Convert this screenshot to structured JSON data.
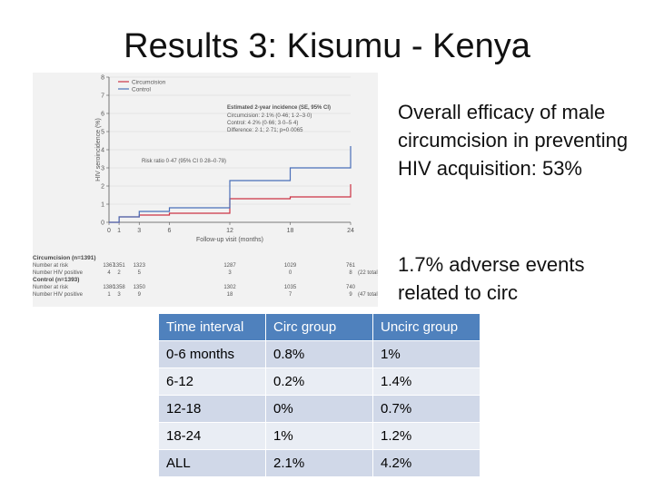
{
  "slide": {
    "title": "Results 3: Kisumu - Kenya",
    "efficacy_text": "Overall efficacy of male circumcision in preventing HIV acquisition: 53%",
    "adverse_text": "1.7% adverse events related to circ"
  },
  "chart_data": {
    "type": "line",
    "step": true,
    "xlabel": "Follow-up visit (months)",
    "ylabel": "HIV seroincidence (%)",
    "xlim": [
      0,
      24
    ],
    "ylim": [
      0,
      8
    ],
    "xticks": [
      "0",
      "1",
      "3",
      "6",
      "12",
      "18",
      "24"
    ],
    "yticks": [
      "0",
      "1",
      "2",
      "3",
      "4",
      "5",
      "6",
      "7",
      "8"
    ],
    "legend_position": "top-left",
    "series": [
      {
        "name": "Circumcision",
        "color": "#cc3344",
        "x": [
          0,
          1,
          1,
          3,
          3,
          6,
          6,
          12,
          12,
          18,
          18,
          24,
          24
        ],
        "y": [
          0,
          0,
          0.3,
          0.3,
          0.4,
          0.4,
          0.5,
          0.5,
          1.3,
          1.3,
          1.4,
          1.4,
          2.1
        ]
      },
      {
        "name": "Control",
        "color": "#4a6fb8",
        "x": [
          0,
          1,
          1,
          3,
          3,
          6,
          6,
          12,
          12,
          18,
          18,
          24,
          24
        ],
        "y": [
          0,
          0,
          0.3,
          0.3,
          0.6,
          0.6,
          0.8,
          0.8,
          2.3,
          2.3,
          3.0,
          3.0,
          4.2
        ]
      }
    ],
    "annotations": {
      "incidence_title": "Estimated 2-year incidence (SE, 95% CI)",
      "incidence_lines": [
        "Circumcision: 2·1% (0·46; 1·2–3·0)",
        "Control: 4·2% (0·66; 3·0–5·4)",
        "Difference: 2·1; 2·71; p=0·0065"
      ],
      "risk_ratio": "Risk ratio 0·47 (95% CI 0·28–0·78)"
    },
    "risk_table": {
      "x_months": [
        0,
        1,
        3,
        6,
        12,
        18,
        24
      ],
      "groups": [
        {
          "header": "Circumcision (n=1391)",
          "rows": [
            {
              "label": "Number at risk",
              "values": [
                "1367",
                "1351",
                "1323",
                "",
                "1287",
                "1029",
                "761"
              ]
            },
            {
              "label": "Number HIV positive",
              "values": [
                "4",
                "2",
                "5",
                "",
                "3",
                "0",
                "8"
              ],
              "total": "(22 total)"
            }
          ]
        },
        {
          "header": "Control (n=1393)",
          "rows": [
            {
              "label": "Number at risk",
              "values": [
                "1380",
                "1358",
                "1350",
                "",
                "1302",
                "1035",
                "740"
              ]
            },
            {
              "label": "Number HIV positive",
              "values": [
                "1",
                "3",
                "9",
                "",
                "18",
                "7",
                "9"
              ],
              "total": "(47 total)"
            }
          ]
        }
      ]
    }
  },
  "results_table": {
    "headers": [
      "Time interval",
      "Circ group",
      "Uncirc group"
    ],
    "rows": [
      [
        "0-6 months",
        "0.8%",
        "1%"
      ],
      [
        "6-12",
        "0.2%",
        "1.4%"
      ],
      [
        "12-18",
        "0%",
        "0.7%"
      ],
      [
        "18-24",
        "1%",
        "1.2%"
      ],
      [
        "ALL",
        "2.1%",
        "4.2%"
      ]
    ]
  }
}
